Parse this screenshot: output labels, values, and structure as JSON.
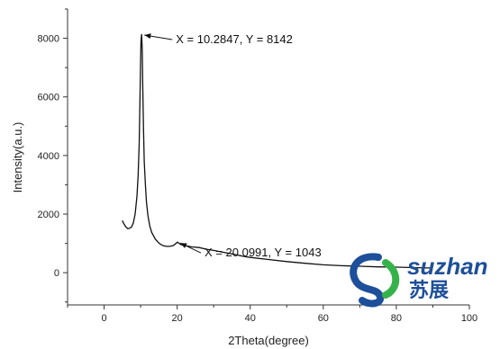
{
  "chart_data": {
    "type": "line",
    "xlabel": "2Theta(degree)",
    "ylabel": "Intensity(a.u.)",
    "xlim": [
      -10,
      100
    ],
    "ylim": [
      -1100,
      9000
    ],
    "xticks": [
      0,
      20,
      40,
      60,
      80,
      100
    ],
    "yticks": [
      0,
      2000,
      4000,
      6000,
      8000
    ],
    "grid": false,
    "series": [
      {
        "x": [
          5,
          5.5,
          6,
          6.5,
          7,
          7.5,
          8,
          8.5,
          9,
          9.3,
          9.6,
          9.8,
          10.0,
          10.1,
          10.2847,
          10.45,
          10.6,
          10.8,
          11.0,
          11.3,
          11.6,
          12,
          12.5,
          13,
          14,
          15,
          16,
          17,
          18,
          19,
          20.0991,
          21,
          22,
          24,
          26,
          28,
          30,
          32,
          35,
          38,
          40,
          45,
          50,
          55,
          60,
          65,
          70,
          75,
          80,
          85,
          90
        ],
        "y": [
          1780,
          1650,
          1560,
          1500,
          1520,
          1560,
          1700,
          2000,
          2600,
          3300,
          4400,
          5800,
          7300,
          7900,
          8142,
          7600,
          6300,
          4900,
          3800,
          3000,
          2400,
          1950,
          1600,
          1380,
          1150,
          1010,
          930,
          900,
          900,
          930,
          1043,
          960,
          930,
          880,
          860,
          800,
          760,
          710,
          640,
          560,
          520,
          450,
          380,
          320,
          270,
          240,
          220,
          200,
          190,
          175,
          160
        ]
      }
    ],
    "annotations": [
      {
        "text": "X = 10.2847, Y = 8142",
        "x": 10.2847,
        "y": 8142
      },
      {
        "text": "X = 20.0991, Y = 1043",
        "x": 20.0991,
        "y": 1043
      }
    ]
  },
  "watermark": {
    "text_en": "suzhan",
    "text_cn": "苏展",
    "color_blue": "#1d4f9a",
    "color_green": "#36b24a"
  }
}
